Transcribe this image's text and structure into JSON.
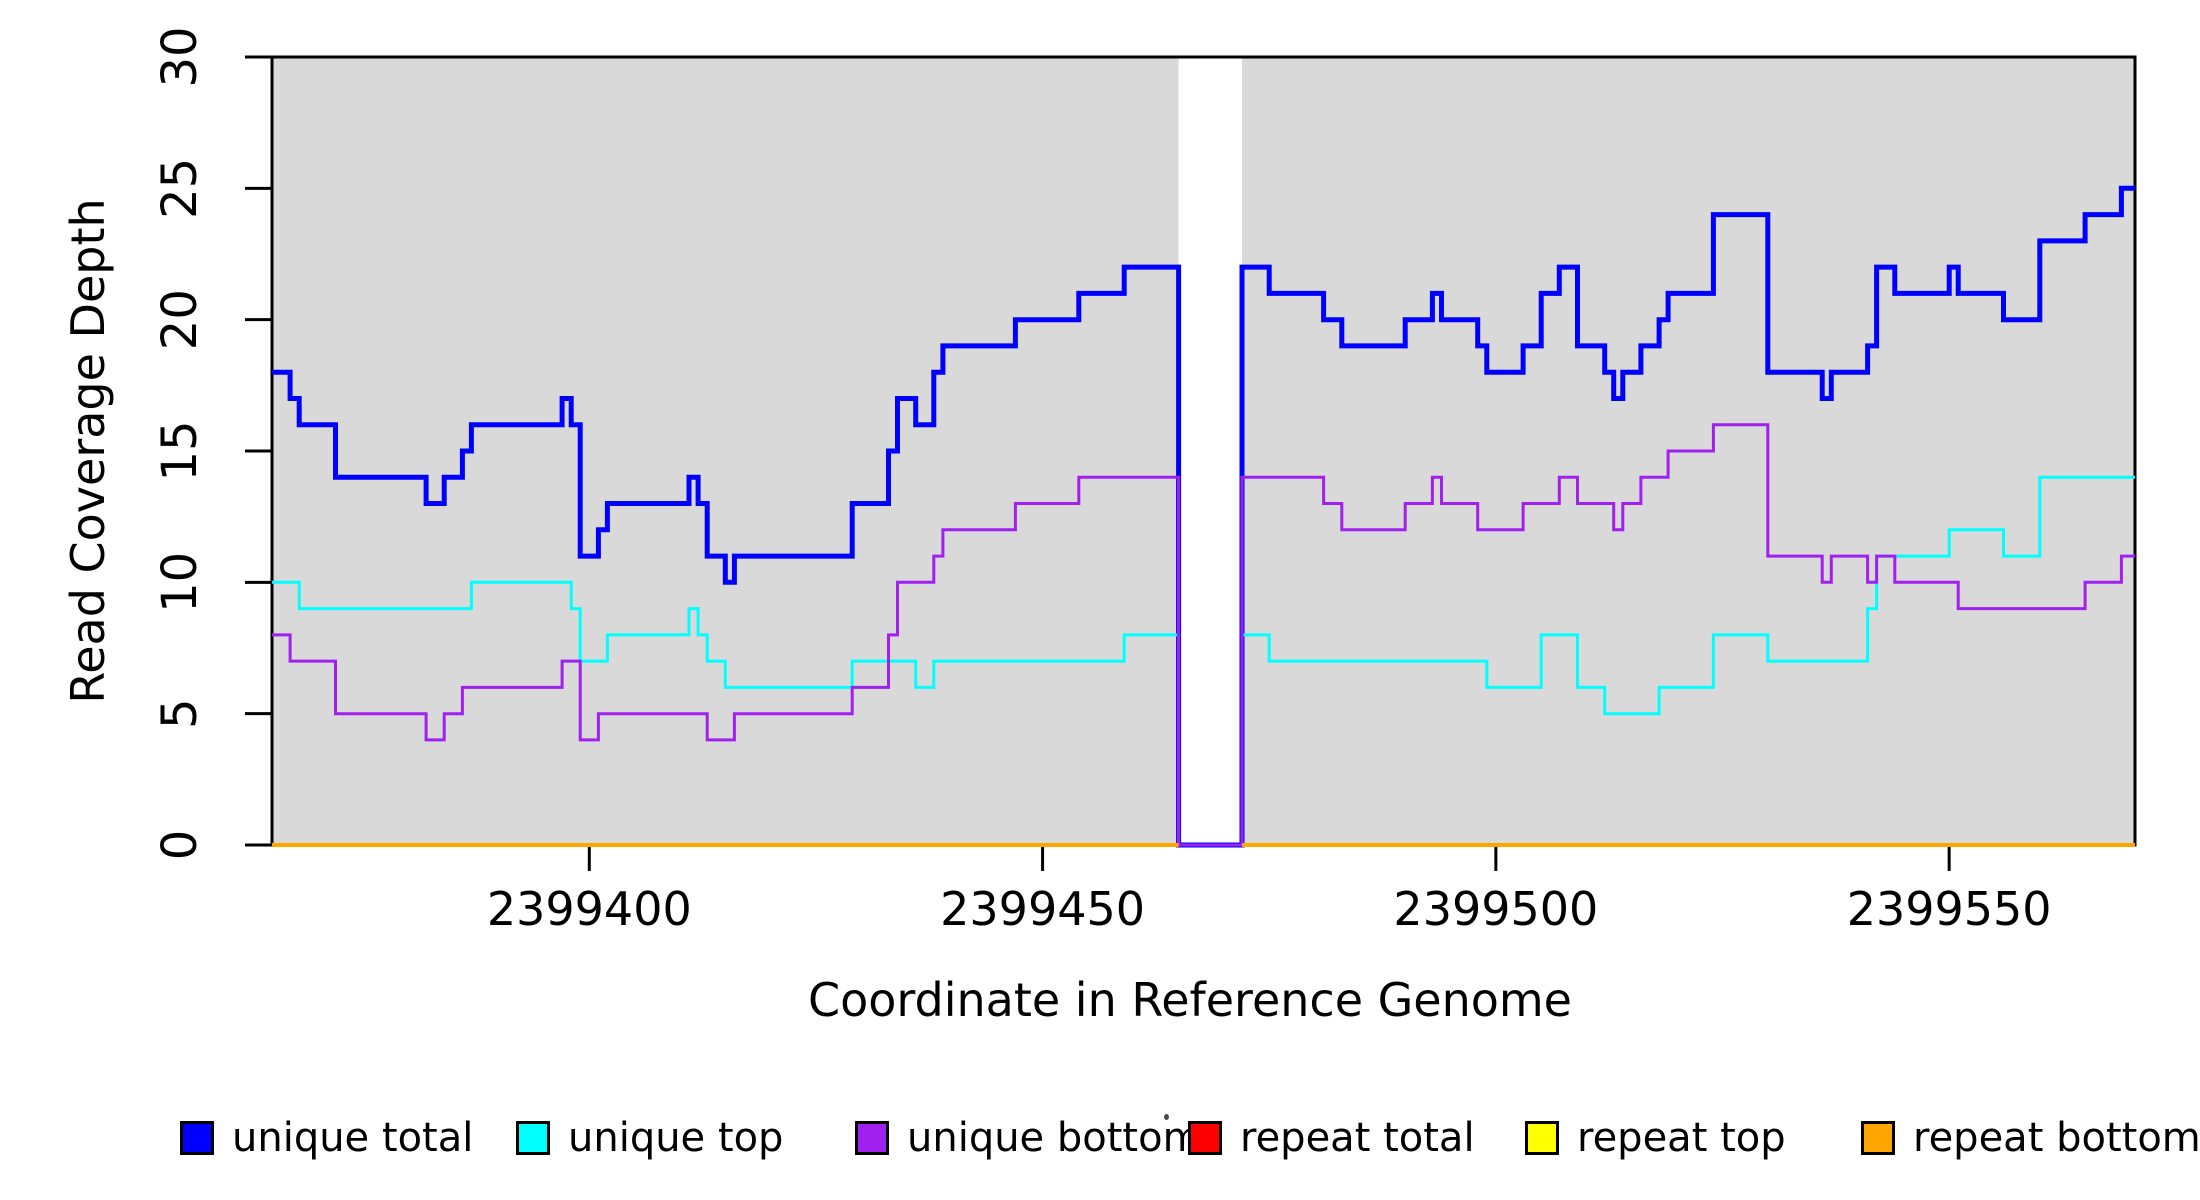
{
  "chart_data": {
    "type": "line",
    "subtype": "step-post",
    "title": "",
    "xlabel": "Coordinate in Reference Genome",
    "ylabel": "Read Coverage Depth",
    "xlim": [
      2399365,
      2399570.5
    ],
    "ylim": [
      0,
      30
    ],
    "x_ticks": [
      2399400,
      2399450,
      2399500,
      2399550
    ],
    "y_ticks": [
      0,
      5,
      10,
      15,
      20,
      25,
      30
    ],
    "grid": false,
    "plot_background_color": "#d9d9d9",
    "gap_region": {
      "start": 2399465,
      "end": 2399472,
      "color": "#ffffff",
      "note": "white band; unique series drop to 0, repeat series break"
    },
    "box_color": "#000000",
    "series": [
      {
        "name": "unique total",
        "color": "#0000FF",
        "line_width": 5,
        "steps": [
          [
            2399365,
            18
          ],
          [
            2399367,
            17
          ],
          [
            2399368,
            16
          ],
          [
            2399372,
            14
          ],
          [
            2399382,
            13
          ],
          [
            2399384,
            14
          ],
          [
            2399386,
            15
          ],
          [
            2399387,
            16
          ],
          [
            2399397,
            17
          ],
          [
            2399398,
            16
          ],
          [
            2399399,
            11
          ],
          [
            2399401,
            12
          ],
          [
            2399402,
            13
          ],
          [
            2399411,
            14
          ],
          [
            2399412,
            13
          ],
          [
            2399413,
            11
          ],
          [
            2399415,
            10
          ],
          [
            2399416,
            11
          ],
          [
            2399429,
            13
          ],
          [
            2399433,
            15
          ],
          [
            2399434,
            17
          ],
          [
            2399436,
            16
          ],
          [
            2399438,
            18
          ],
          [
            2399439,
            19
          ],
          [
            2399447,
            20
          ],
          [
            2399454,
            21
          ],
          [
            2399459,
            22
          ],
          [
            2399465,
            0
          ],
          [
            2399472,
            22
          ],
          [
            2399475,
            21
          ],
          [
            2399481,
            20
          ],
          [
            2399483,
            19
          ],
          [
            2399490,
            20
          ],
          [
            2399493,
            21
          ],
          [
            2399494,
            20
          ],
          [
            2399498,
            19
          ],
          [
            2399499,
            18
          ],
          [
            2399503,
            19
          ],
          [
            2399505,
            21
          ],
          [
            2399507,
            22
          ],
          [
            2399509,
            19
          ],
          [
            2399512,
            18
          ],
          [
            2399513,
            17
          ],
          [
            2399514,
            18
          ],
          [
            2399516,
            19
          ],
          [
            2399518,
            20
          ],
          [
            2399519,
            21
          ],
          [
            2399524,
            24
          ],
          [
            2399530,
            18
          ],
          [
            2399536,
            17
          ],
          [
            2399537,
            18
          ],
          [
            2399541,
            19
          ],
          [
            2399542,
            22
          ],
          [
            2399544,
            21
          ],
          [
            2399550,
            22
          ],
          [
            2399551,
            21
          ],
          [
            2399556,
            20
          ],
          [
            2399560,
            23
          ],
          [
            2399565,
            24
          ],
          [
            2399569,
            25
          ]
        ]
      },
      {
        "name": "unique top",
        "color": "#00FFFF",
        "line_width": 3,
        "steps": [
          [
            2399365,
            10
          ],
          [
            2399368,
            9
          ],
          [
            2399387,
            10
          ],
          [
            2399398,
            9
          ],
          [
            2399399,
            7
          ],
          [
            2399402,
            8
          ],
          [
            2399411,
            9
          ],
          [
            2399412,
            8
          ],
          [
            2399413,
            7
          ],
          [
            2399415,
            6
          ],
          [
            2399429,
            7
          ],
          [
            2399436,
            6
          ],
          [
            2399438,
            7
          ],
          [
            2399459,
            8
          ],
          [
            2399465,
            0
          ],
          [
            2399472,
            8
          ],
          [
            2399475,
            7
          ],
          [
            2399499,
            6
          ],
          [
            2399505,
            8
          ],
          [
            2399509,
            6
          ],
          [
            2399512,
            5
          ],
          [
            2399518,
            6
          ],
          [
            2399524,
            8
          ],
          [
            2399530,
            7
          ],
          [
            2399541,
            9
          ],
          [
            2399542,
            11
          ],
          [
            2399550,
            12
          ],
          [
            2399556,
            11
          ],
          [
            2399560,
            14
          ]
        ]
      },
      {
        "name": "unique bottom",
        "color": "#A020F0",
        "line_width": 3,
        "steps": [
          [
            2399365,
            8
          ],
          [
            2399367,
            7
          ],
          [
            2399372,
            5
          ],
          [
            2399382,
            4
          ],
          [
            2399384,
            5
          ],
          [
            2399386,
            6
          ],
          [
            2399397,
            7
          ],
          [
            2399399,
            4
          ],
          [
            2399401,
            5
          ],
          [
            2399413,
            4
          ],
          [
            2399416,
            5
          ],
          [
            2399429,
            6
          ],
          [
            2399433,
            8
          ],
          [
            2399434,
            10
          ],
          [
            2399438,
            11
          ],
          [
            2399439,
            12
          ],
          [
            2399447,
            13
          ],
          [
            2399454,
            14
          ],
          [
            2399465,
            0
          ],
          [
            2399472,
            14
          ],
          [
            2399481,
            13
          ],
          [
            2399483,
            12
          ],
          [
            2399490,
            13
          ],
          [
            2399493,
            14
          ],
          [
            2399494,
            13
          ],
          [
            2399498,
            12
          ],
          [
            2399503,
            13
          ],
          [
            2399507,
            14
          ],
          [
            2399509,
            13
          ],
          [
            2399513,
            12
          ],
          [
            2399514,
            13
          ],
          [
            2399516,
            14
          ],
          [
            2399519,
            15
          ],
          [
            2399524,
            16
          ],
          [
            2399530,
            11
          ],
          [
            2399536,
            10
          ],
          [
            2399537,
            11
          ],
          [
            2399541,
            10
          ],
          [
            2399542,
            11
          ],
          [
            2399544,
            10
          ],
          [
            2399551,
            9
          ],
          [
            2399565,
            10
          ],
          [
            2399569,
            11
          ]
        ]
      },
      {
        "name": "repeat total",
        "color": "#FF0000",
        "line_width": 3,
        "constant_value": 0,
        "segments": [
          [
            2399365,
            2399465
          ],
          [
            2399472,
            2399570.5
          ]
        ]
      },
      {
        "name": "repeat top",
        "color": "#FFFF00",
        "line_width": 3,
        "constant_value": 0,
        "segments": [
          [
            2399365,
            2399465
          ],
          [
            2399472,
            2399570.5
          ]
        ]
      },
      {
        "name": "repeat bottom",
        "color": "#FFA500",
        "line_width": 4,
        "constant_value": 0,
        "segments": [
          [
            2399365,
            2399465
          ],
          [
            2399472,
            2399570.5
          ]
        ]
      }
    ]
  },
  "legend": {
    "entries": [
      {
        "label": "unique total",
        "color": "#0000FF"
      },
      {
        "label": "unique top",
        "color": "#00FFFF"
      },
      {
        "label": "unique bottom",
        "color": "#A020F0"
      },
      {
        "label": "repeat total",
        "color": "#FF0000"
      },
      {
        "label": "repeat top",
        "color": "#FFFF00"
      },
      {
        "label": "repeat bottom",
        "color": "#FFA500"
      }
    ]
  }
}
